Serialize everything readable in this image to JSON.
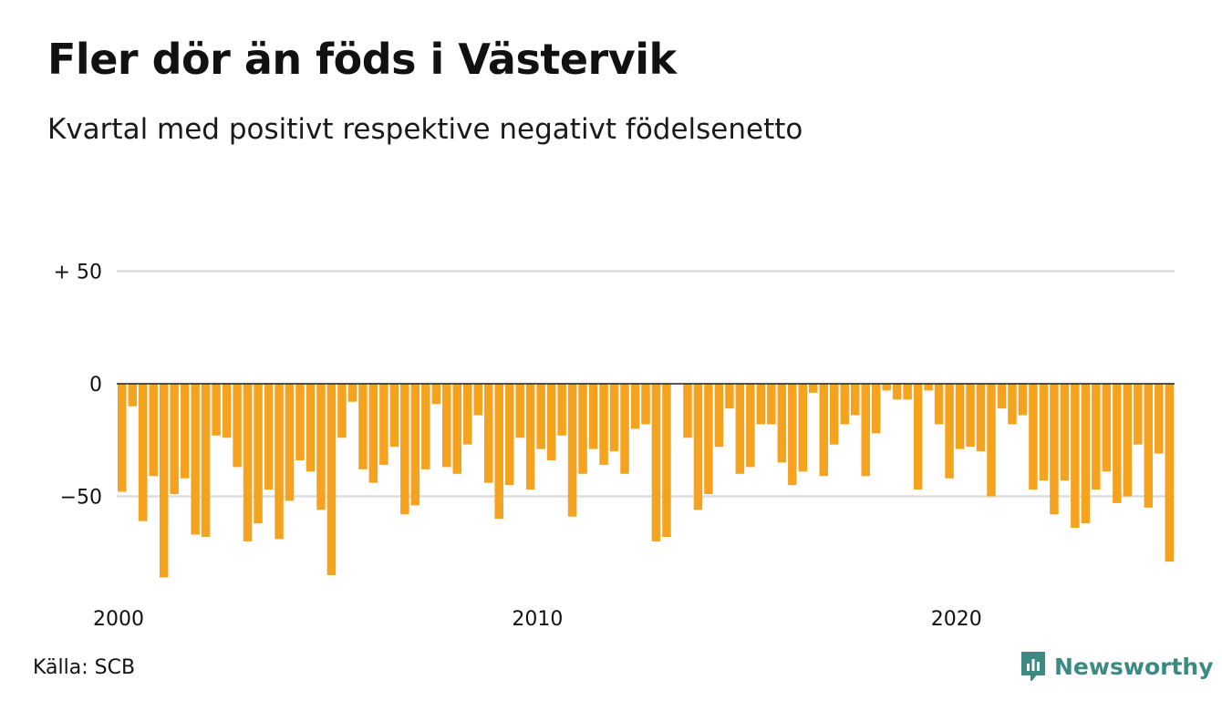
{
  "chart_data": {
    "type": "bar",
    "title": "Fler dör än föds i Västervik",
    "subtitle": "Kvartal med positivt respektive negativt födelsenetto",
    "x_ticks": [
      "2000",
      "2010",
      "2020"
    ],
    "y_ticks": [
      {
        "value": 50,
        "label": "+ 50"
      },
      {
        "value": 0,
        "label": "0"
      },
      {
        "value": -50,
        "label": "−50"
      }
    ],
    "ylim": [
      -92,
      100
    ],
    "grid": true,
    "start_year": 2000,
    "bar_color": "#f5a31f",
    "values": [
      -48,
      -10,
      -61,
      -41,
      -86,
      -49,
      -42,
      -67,
      -68,
      -23,
      -24,
      -37,
      -70,
      -62,
      -47,
      -69,
      -52,
      -34,
      -39,
      -56,
      -85,
      -24,
      -8,
      -38,
      -44,
      -36,
      -28,
      -58,
      -54,
      -38,
      -9,
      -37,
      -40,
      -27,
      -14,
      -44,
      -60,
      -45,
      -24,
      -47,
      -29,
      -34,
      -23,
      -59,
      -40,
      -29,
      -36,
      -30,
      -40,
      -20,
      -18,
      -70,
      -68,
      0,
      -24,
      -56,
      -49,
      -28,
      -11,
      -40,
      -37,
      -18,
      -18,
      -35,
      -45,
      -39,
      -4,
      -41,
      -27,
      -18,
      -14,
      -41,
      -22,
      -3,
      -7,
      -7,
      -47,
      -3,
      -18,
      -42,
      -29,
      -28,
      -30,
      -50,
      -11,
      -18,
      -14,
      -47,
      -43,
      -58,
      -43,
      -64,
      -62,
      -47,
      -39,
      -53,
      -50,
      -27,
      -55,
      -31,
      -79
    ]
  },
  "footer": {
    "source": "Källa: SCB",
    "brand": "Newsworthy"
  },
  "colors": {
    "brand": "#3d8a82",
    "grid": "#dddddd",
    "zero_line": "#222222"
  }
}
